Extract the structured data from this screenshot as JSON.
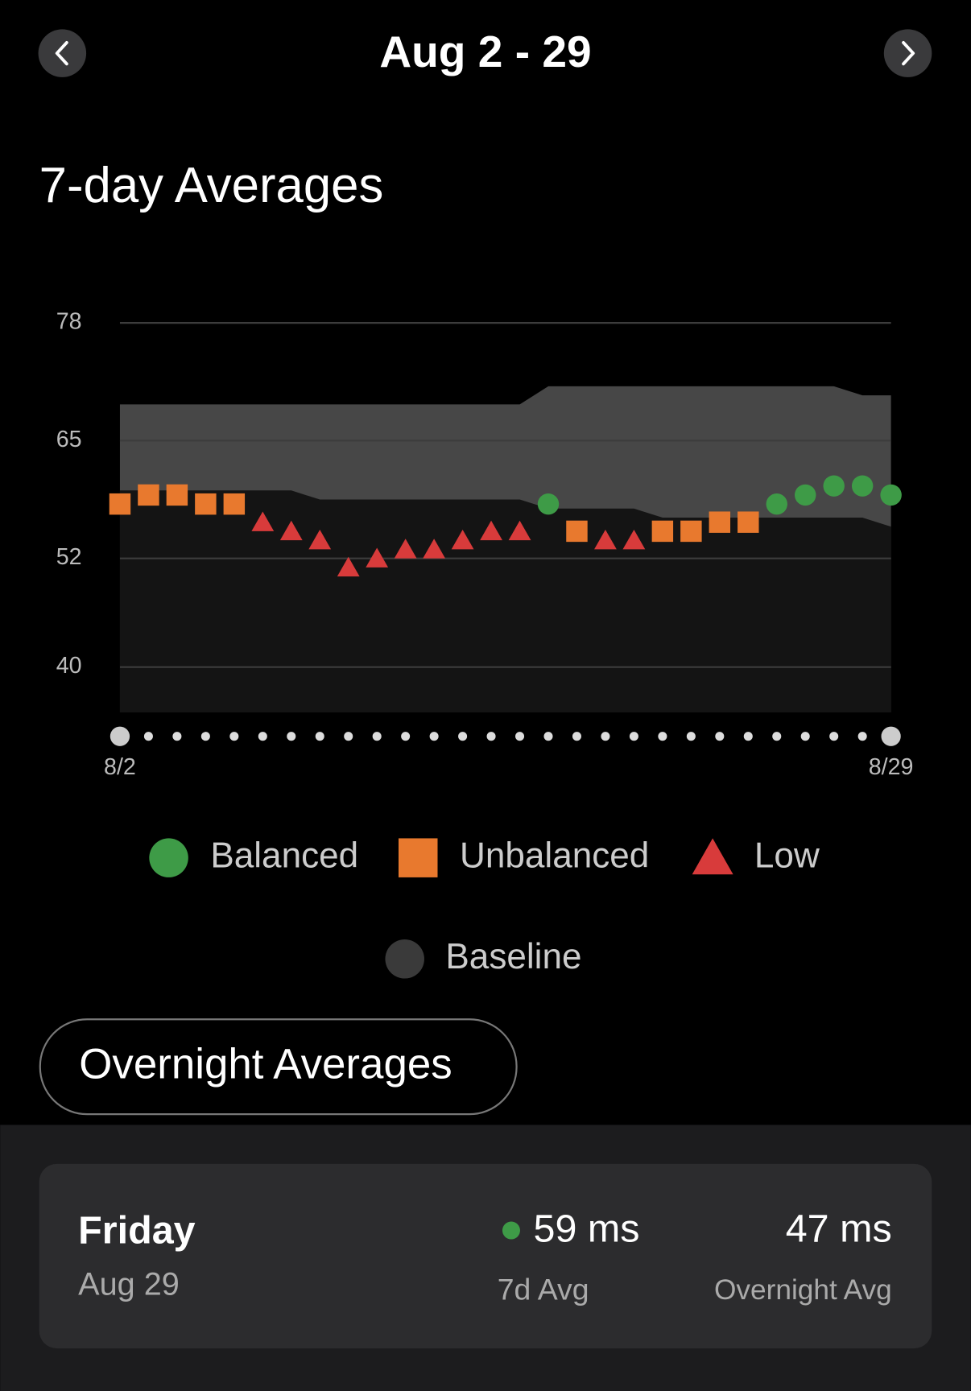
{
  "header": {
    "title": "Aug 2 - 29"
  },
  "chart_data": {
    "type": "scatter",
    "title": "7-day Averages",
    "categories": [
      "8/2",
      null,
      null,
      null,
      null,
      null,
      null,
      null,
      null,
      null,
      null,
      null,
      null,
      null,
      null,
      null,
      null,
      null,
      null,
      null,
      null,
      null,
      null,
      null,
      null,
      null,
      null,
      "8/29"
    ],
    "ylim": [
      35,
      78
    ],
    "yticks": [
      40,
      52,
      65,
      78
    ],
    "grid": true,
    "series": [
      {
        "name": "Balanced",
        "color": "#3e9b47",
        "marker": "circle",
        "values": [
          null,
          null,
          null,
          null,
          null,
          null,
          null,
          null,
          null,
          null,
          null,
          null,
          null,
          null,
          null,
          58,
          null,
          null,
          null,
          null,
          null,
          null,
          null,
          58,
          59,
          60,
          60,
          59
        ]
      },
      {
        "name": "Unbalanced",
        "color": "#e8792e",
        "marker": "square",
        "values": [
          58,
          59,
          59,
          58,
          58,
          null,
          null,
          null,
          null,
          null,
          null,
          null,
          null,
          null,
          null,
          null,
          55,
          null,
          null,
          55,
          55,
          56,
          56,
          null,
          null,
          null,
          null,
          null
        ]
      },
      {
        "name": "Low",
        "color": "#d83b3b",
        "marker": "triangle",
        "values": [
          null,
          null,
          null,
          null,
          null,
          56,
          55,
          54,
          51,
          52,
          53,
          53,
          54,
          55,
          55,
          null,
          null,
          54,
          54,
          null,
          null,
          null,
          null,
          null,
          null,
          null,
          null,
          null
        ]
      }
    ],
    "baseline": {
      "name": "Baseline",
      "color": "#474747",
      "upper": [
        69,
        69,
        69,
        69,
        69,
        69,
        69,
        69,
        69,
        69,
        69,
        69,
        69,
        69,
        69,
        71,
        71,
        71,
        71,
        71,
        71,
        71,
        71,
        71,
        71,
        71,
        70,
        70
      ],
      "lower": [
        59.5,
        59.5,
        59.5,
        59.5,
        59.5,
        59.5,
        59.5,
        58.5,
        58.5,
        58.5,
        58.5,
        58.5,
        58.5,
        58.5,
        58.5,
        57.5,
        57.5,
        57.5,
        57.5,
        56.5,
        56.5,
        56.5,
        56.5,
        56.5,
        56.5,
        56.5,
        56.5,
        55.5
      ]
    }
  },
  "toggle": {
    "label": "Overnight Averages"
  },
  "card": {
    "day": "Friday",
    "date": "Aug 29",
    "avg_7d": "59 ms",
    "avg_7d_label": "7d Avg",
    "overnight": "47 ms",
    "overnight_label": "Overnight Avg"
  }
}
